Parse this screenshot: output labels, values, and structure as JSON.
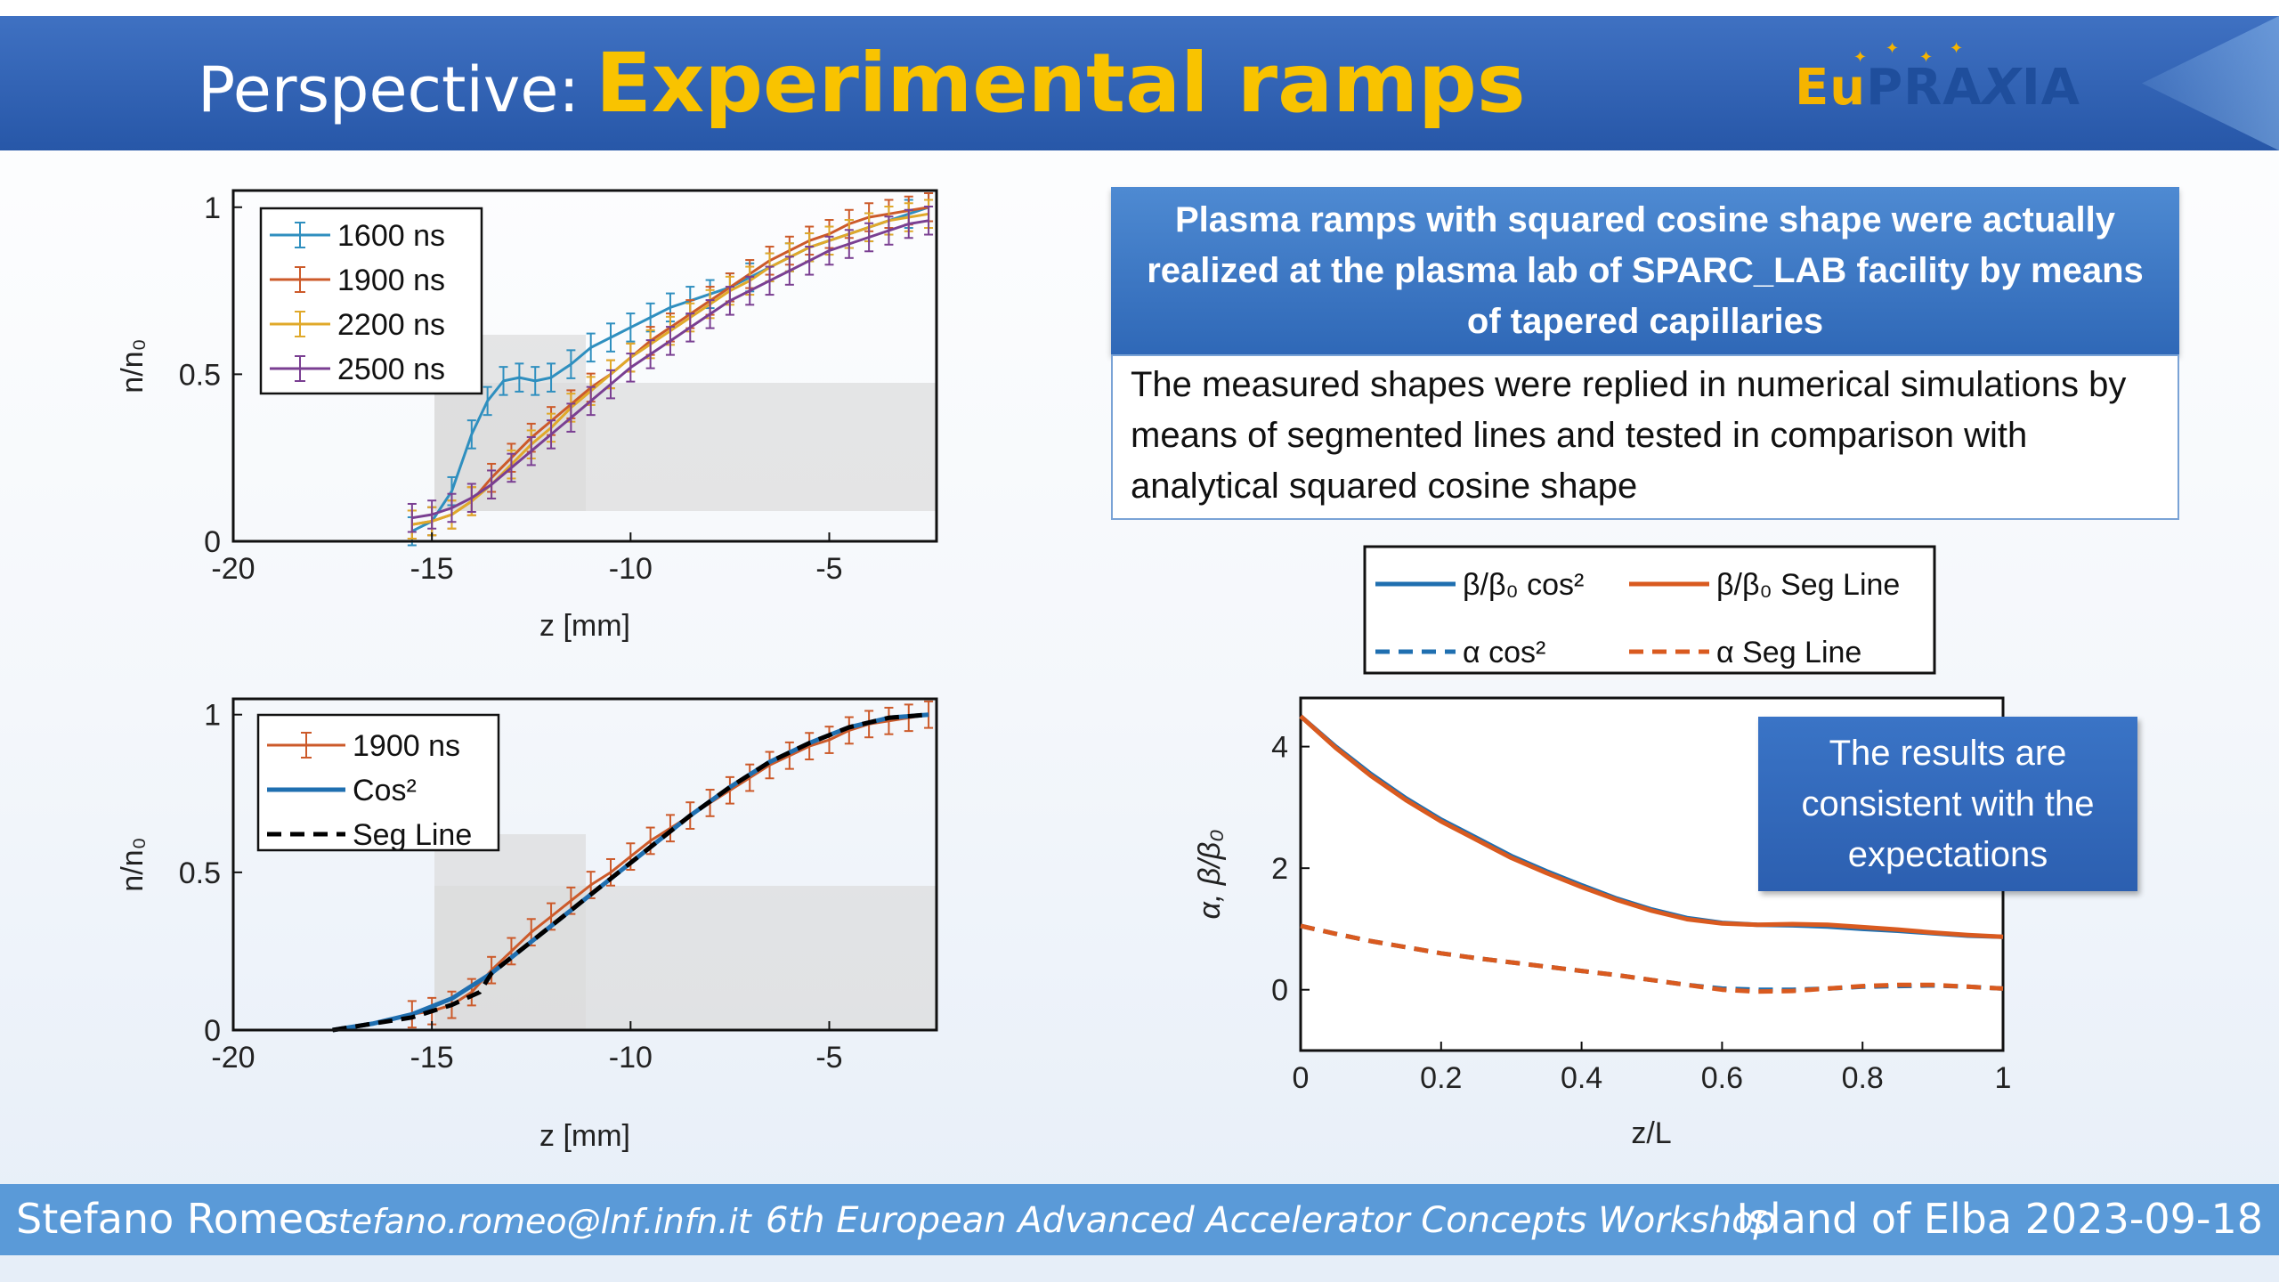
{
  "slide": {
    "title_prefix": "Perspective:",
    "title_main": "Experimental ramps",
    "logo": {
      "part1": "Eu",
      "part2": "PRA",
      "part3": "X",
      "part4": "IA"
    },
    "colors": {
      "header": "#2f5fb0",
      "title_accent": "#f9c300",
      "footer": "#5a9ad8"
    }
  },
  "info_box": {
    "header": "Plasma ramps with squared cosine shape were actually realized at the plasma lab of SPARC_LAB facility by means of tapered capillaries",
    "body": "The measured shapes were replied in numerical simulations by means of segmented lines and tested in comparison with analytical squared cosine shape"
  },
  "callout": "The results are consistent with the expectations",
  "footer": {
    "name": "Stefano Romeo",
    "email": "stefano.romeo@lnf.infn.it",
    "conference": "6th European Advanced Accelerator Concepts Workshop",
    "place_date": "Island of Elba 2023-09-18"
  },
  "chart_data": [
    {
      "id": "ramps-measured",
      "type": "line",
      "xlabel": "z [mm]",
      "ylabel": "n/n₀",
      "xlim": [
        -20,
        -2.3
      ],
      "ylim": [
        0,
        1.05
      ],
      "xticks": [
        -20,
        -15,
        -10,
        -5
      ],
      "yticks": [
        0,
        0.5,
        1
      ],
      "legend_position": "top-left",
      "errorbars": true,
      "series": [
        {
          "name": "1600 ns",
          "color": "#2f8fbf",
          "x": [
            -15.5,
            -15,
            -14.5,
            -14,
            -13.6,
            -13.2,
            -12.8,
            -12.4,
            -12,
            -11.5,
            -11,
            -10.5,
            -10,
            -9.5,
            -9,
            -8.5,
            -8,
            -7.5,
            -7,
            -6.5,
            -6,
            -5.5,
            -5,
            -4.5,
            -4,
            -3.5,
            -3,
            -2.5
          ],
          "y": [
            0.03,
            0.06,
            0.15,
            0.32,
            0.42,
            0.48,
            0.49,
            0.48,
            0.49,
            0.53,
            0.58,
            0.61,
            0.64,
            0.67,
            0.7,
            0.72,
            0.74,
            0.76,
            0.79,
            0.82,
            0.85,
            0.88,
            0.9,
            0.92,
            0.94,
            0.96,
            0.98,
            1.0
          ]
        },
        {
          "name": "1900 ns",
          "color": "#cc5a2a",
          "x": [
            -15.5,
            -15,
            -14.5,
            -14,
            -13.5,
            -13,
            -12.5,
            -12,
            -11.5,
            -11,
            -10.5,
            -10,
            -9.5,
            -9,
            -8.5,
            -8,
            -7.5,
            -7,
            -6.5,
            -6,
            -5.5,
            -5,
            -4.5,
            -4,
            -3.5,
            -3,
            -2.5
          ],
          "y": [
            0.05,
            0.06,
            0.08,
            0.12,
            0.19,
            0.25,
            0.31,
            0.36,
            0.41,
            0.46,
            0.5,
            0.55,
            0.6,
            0.64,
            0.68,
            0.72,
            0.76,
            0.8,
            0.84,
            0.87,
            0.9,
            0.92,
            0.95,
            0.97,
            0.98,
            0.99,
            1.0
          ]
        },
        {
          "name": "2200 ns",
          "color": "#e0a92a",
          "x": [
            -15.5,
            -15,
            -14.5,
            -14,
            -13.5,
            -13,
            -12.5,
            -12,
            -11.5,
            -11,
            -10.5,
            -10,
            -9.5,
            -9,
            -8.5,
            -8,
            -7.5,
            -7,
            -6.5,
            -6,
            -5.5,
            -5,
            -4.5,
            -4,
            -3.5,
            -3,
            -2.5
          ],
          "y": [
            0.05,
            0.06,
            0.08,
            0.12,
            0.17,
            0.23,
            0.29,
            0.34,
            0.4,
            0.45,
            0.5,
            0.55,
            0.59,
            0.63,
            0.67,
            0.71,
            0.75,
            0.78,
            0.82,
            0.85,
            0.88,
            0.9,
            0.92,
            0.94,
            0.96,
            0.97,
            0.98
          ]
        },
        {
          "name": "2500 ns",
          "color": "#7a3f92",
          "x": [
            -15.5,
            -15,
            -14.5,
            -14,
            -13.5,
            -13,
            -12.5,
            -12,
            -11.5,
            -11,
            -10.5,
            -10,
            -9.5,
            -9,
            -8.5,
            -8,
            -7.5,
            -7,
            -6.5,
            -6,
            -5.5,
            -5,
            -4.5,
            -4,
            -3.5,
            -3,
            -2.5
          ],
          "y": [
            0.07,
            0.08,
            0.1,
            0.13,
            0.17,
            0.22,
            0.27,
            0.32,
            0.37,
            0.42,
            0.47,
            0.52,
            0.56,
            0.6,
            0.64,
            0.68,
            0.72,
            0.75,
            0.78,
            0.81,
            0.84,
            0.87,
            0.89,
            0.91,
            0.93,
            0.95,
            0.96
          ]
        }
      ]
    },
    {
      "id": "ramp-model-comparison",
      "type": "line",
      "xlabel": "z [mm]",
      "ylabel": "n/n₀",
      "xlim": [
        -20,
        -2.3
      ],
      "ylim": [
        0,
        1.05
      ],
      "xticks": [
        -20,
        -15,
        -10,
        -5
      ],
      "yticks": [
        0,
        0.5,
        1
      ],
      "legend_position": "top-left",
      "series": [
        {
          "name": "1900 ns",
          "color": "#cc5a2a",
          "errorbars": true,
          "x": [
            -15.5,
            -15,
            -14.5,
            -14,
            -13.5,
            -13,
            -12.5,
            -12,
            -11.5,
            -11,
            -10.5,
            -10,
            -9.5,
            -9,
            -8.5,
            -8,
            -7.5,
            -7,
            -6.5,
            -6,
            -5.5,
            -5,
            -4.5,
            -4,
            -3.5,
            -3,
            -2.5
          ],
          "y": [
            0.05,
            0.06,
            0.08,
            0.12,
            0.19,
            0.25,
            0.31,
            0.36,
            0.41,
            0.46,
            0.5,
            0.55,
            0.6,
            0.64,
            0.68,
            0.72,
            0.76,
            0.8,
            0.84,
            0.87,
            0.9,
            0.92,
            0.95,
            0.97,
            0.98,
            0.99,
            1.0
          ]
        },
        {
          "name": "Cos²",
          "color": "#1f6fb0",
          "x": [
            -17.5,
            -16.5,
            -15.5,
            -14.5,
            -13.5,
            -12.5,
            -11.5,
            -10.5,
            -9.5,
            -8.5,
            -7.5,
            -6.5,
            -5.5,
            -4.5,
            -3.5,
            -2.5
          ],
          "y": [
            0.0,
            0.02,
            0.05,
            0.1,
            0.18,
            0.28,
            0.38,
            0.48,
            0.58,
            0.68,
            0.77,
            0.85,
            0.91,
            0.96,
            0.99,
            1.0
          ]
        },
        {
          "name": "Seg Line",
          "color": "#000000",
          "dashed": true,
          "x": [
            -17.5,
            -16.5,
            -15.5,
            -14.5,
            -13.8,
            -13.5,
            -12.5,
            -11.5,
            -10.5,
            -9.5,
            -8.5,
            -7.5,
            -6.5,
            -5.5,
            -4.5,
            -3.5,
            -2.5
          ],
          "y": [
            0.0,
            0.02,
            0.04,
            0.08,
            0.12,
            0.18,
            0.28,
            0.38,
            0.48,
            0.58,
            0.68,
            0.77,
            0.85,
            0.91,
            0.96,
            0.99,
            1.0
          ]
        }
      ]
    },
    {
      "id": "twiss-comparison",
      "type": "line",
      "xlabel": "z/L",
      "ylabel": "α, β/β₀",
      "xlim": [
        0,
        1
      ],
      "ylim": [
        -1,
        4.8
      ],
      "xticks": [
        0,
        0.2,
        0.4,
        0.6,
        0.8,
        1
      ],
      "yticks": [
        0,
        2,
        4
      ],
      "legend_position": "top (outside)",
      "series": [
        {
          "name": "β/β₀ cos²",
          "color": "#1f6fb0",
          "x": [
            0,
            0.05,
            0.1,
            0.15,
            0.2,
            0.25,
            0.3,
            0.35,
            0.4,
            0.45,
            0.5,
            0.55,
            0.6,
            0.65,
            0.7,
            0.75,
            0.8,
            0.85,
            0.9,
            0.95,
            1
          ],
          "y": [
            4.5,
            4.0,
            3.55,
            3.15,
            2.8,
            2.5,
            2.2,
            1.95,
            1.72,
            1.5,
            1.32,
            1.18,
            1.1,
            1.07,
            1.06,
            1.04,
            1.0,
            0.97,
            0.93,
            0.89,
            0.87
          ]
        },
        {
          "name": "β/β₀ Seg Line",
          "color": "#d95a1f",
          "x": [
            0,
            0.05,
            0.1,
            0.15,
            0.2,
            0.25,
            0.3,
            0.35,
            0.4,
            0.45,
            0.5,
            0.55,
            0.6,
            0.65,
            0.7,
            0.75,
            0.8,
            0.85,
            0.9,
            0.95,
            1
          ],
          "y": [
            4.5,
            3.98,
            3.52,
            3.12,
            2.77,
            2.47,
            2.17,
            1.92,
            1.69,
            1.48,
            1.3,
            1.16,
            1.09,
            1.07,
            1.08,
            1.07,
            1.03,
            0.99,
            0.94,
            0.9,
            0.87
          ]
        },
        {
          "name": "α cos²",
          "color": "#1f6fb0",
          "dashed": true,
          "x": [
            0,
            0.05,
            0.1,
            0.15,
            0.2,
            0.25,
            0.3,
            0.35,
            0.4,
            0.45,
            0.5,
            0.55,
            0.6,
            0.65,
            0.7,
            0.75,
            0.8,
            0.85,
            0.9,
            0.95,
            1
          ],
          "y": [
            1.05,
            0.92,
            0.8,
            0.7,
            0.6,
            0.52,
            0.45,
            0.38,
            0.31,
            0.24,
            0.16,
            0.08,
            0.02,
            0.0,
            0.0,
            0.02,
            0.05,
            0.06,
            0.07,
            0.05,
            0.02
          ]
        },
        {
          "name": "α Seg Line",
          "color": "#d95a1f",
          "dashed": true,
          "x": [
            0,
            0.05,
            0.1,
            0.15,
            0.2,
            0.25,
            0.3,
            0.35,
            0.4,
            0.45,
            0.5,
            0.55,
            0.6,
            0.65,
            0.7,
            0.75,
            0.8,
            0.85,
            0.9,
            0.95,
            1
          ],
          "y": [
            1.05,
            0.92,
            0.8,
            0.7,
            0.6,
            0.52,
            0.45,
            0.38,
            0.31,
            0.24,
            0.16,
            0.08,
            0.0,
            -0.03,
            -0.02,
            0.02,
            0.06,
            0.08,
            0.08,
            0.05,
            0.02
          ]
        }
      ]
    }
  ]
}
